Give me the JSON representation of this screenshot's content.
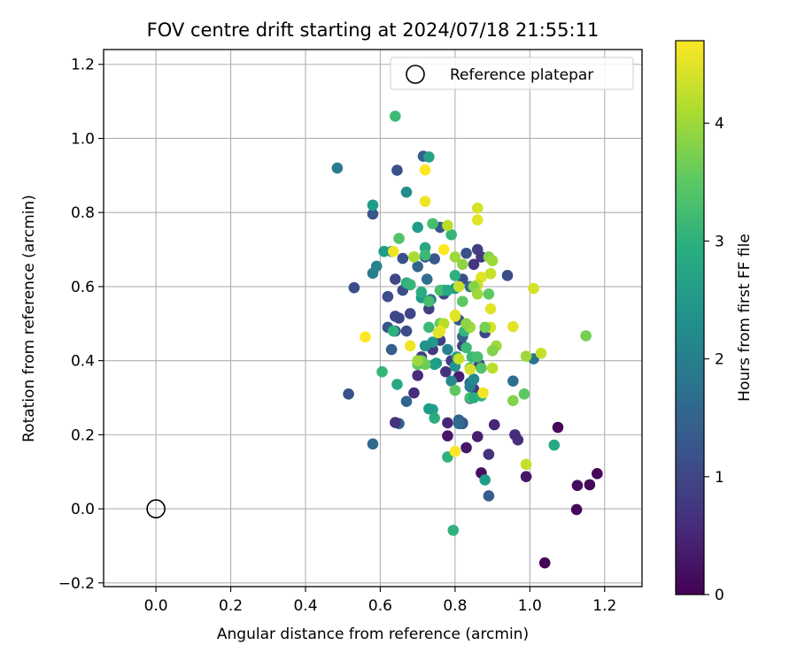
{
  "chart_data": {
    "type": "scatter",
    "title": "FOV centre drift starting at 2024/07/18 21:55:11",
    "xlabel": "Angular distance from reference (arcmin)",
    "ylabel": "Rotation from reference (arcmin)",
    "xlim": [
      -0.14,
      1.3
    ],
    "ylim": [
      -0.21,
      1.24
    ],
    "xticks": [
      0.0,
      0.2,
      0.4,
      0.6,
      0.8,
      1.0,
      1.2
    ],
    "xtick_labels": [
      "0.0",
      "0.2",
      "0.4",
      "0.6",
      "0.8",
      "1.0",
      "1.2"
    ],
    "yticks": [
      -0.2,
      0.0,
      0.2,
      0.4,
      0.6,
      0.8,
      1.0,
      1.2
    ],
    "ytick_labels": [
      "−0.2",
      "0.0",
      "0.2",
      "0.4",
      "0.6",
      "0.8",
      "1.0",
      "1.2"
    ],
    "grid": true,
    "legend": {
      "placement": "top-right",
      "entries": [
        "Reference platepar"
      ]
    },
    "reference_point": {
      "x": 0.0,
      "y": 0.0
    },
    "colorbar": {
      "label": "Hours from first FF file",
      "colormap": "viridis",
      "range": [
        0,
        4.7
      ],
      "ticks": [
        0,
        1,
        2,
        3,
        4
      ],
      "tick_labels": [
        "0",
        "1",
        "2",
        "3",
        "4"
      ]
    },
    "points": [
      [
        1.04,
        -0.146,
        0.05
      ],
      [
        1.125,
        -0.002,
        0.1
      ],
      [
        1.127,
        0.063,
        0.15
      ],
      [
        1.16,
        0.065,
        0.1
      ],
      [
        1.18,
        0.095,
        0.08
      ],
      [
        1.075,
        0.22,
        0.1
      ],
      [
        0.87,
        0.097,
        0.2
      ],
      [
        0.99,
        0.087,
        0.3
      ],
      [
        0.83,
        0.165,
        0.3
      ],
      [
        0.86,
        0.195,
        0.4
      ],
      [
        0.78,
        0.197,
        0.3
      ],
      [
        0.82,
        0.232,
        0.4
      ],
      [
        0.78,
        0.232,
        0.5
      ],
      [
        0.96,
        0.2,
        0.6
      ],
      [
        0.968,
        0.186,
        0.6
      ],
      [
        0.89,
        0.147,
        0.7
      ],
      [
        0.905,
        0.227,
        0.5
      ],
      [
        0.84,
        0.298,
        0.6
      ],
      [
        0.87,
        0.307,
        0.5
      ],
      [
        0.85,
        0.323,
        0.7
      ],
      [
        0.81,
        0.357,
        0.4
      ],
      [
        0.79,
        0.4,
        0.8
      ],
      [
        0.775,
        0.37,
        0.7
      ],
      [
        0.865,
        0.39,
        0.8
      ],
      [
        0.82,
        0.44,
        0.9
      ],
      [
        0.7,
        0.36,
        0.6
      ],
      [
        0.69,
        0.313,
        0.6
      ],
      [
        0.71,
        0.41,
        0.9
      ],
      [
        0.74,
        0.43,
        0.8
      ],
      [
        0.76,
        0.455,
        0.9
      ],
      [
        0.73,
        0.54,
        0.9
      ],
      [
        0.77,
        0.58,
        1.0
      ],
      [
        0.67,
        0.48,
        1.1
      ],
      [
        0.64,
        0.48,
        1.2
      ],
      [
        0.62,
        0.49,
        1.3
      ],
      [
        0.63,
        0.43,
        1.4
      ],
      [
        0.65,
        0.23,
        1.5
      ],
      [
        0.64,
        0.233,
        0.7
      ],
      [
        0.67,
        0.29,
        1.5
      ],
      [
        0.58,
        0.175,
        1.6
      ],
      [
        0.515,
        0.31,
        1.2
      ],
      [
        0.53,
        0.597,
        1.1
      ],
      [
        0.62,
        0.573,
        1.1
      ],
      [
        0.64,
        0.52,
        1.0
      ],
      [
        0.65,
        0.515,
        1.0
      ],
      [
        0.68,
        0.527,
        1.0
      ],
      [
        0.64,
        0.62,
        1.0
      ],
      [
        0.66,
        0.59,
        1.1
      ],
      [
        0.68,
        0.605,
        1.2
      ],
      [
        0.66,
        0.676,
        1.2
      ],
      [
        0.72,
        0.68,
        1.2
      ],
      [
        0.745,
        0.675,
        1.3
      ],
      [
        0.76,
        0.76,
        1.3
      ],
      [
        0.7,
        0.654,
        1.5
      ],
      [
        0.725,
        0.62,
        1.7
      ],
      [
        0.735,
        0.565,
        1.9
      ],
      [
        0.58,
        0.636,
        2.0
      ],
      [
        0.59,
        0.655,
        2.1
      ],
      [
        0.58,
        0.796,
        1.3
      ],
      [
        0.645,
        0.914,
        1.2
      ],
      [
        0.715,
        0.952,
        1.4
      ],
      [
        0.485,
        0.92,
        2.0
      ],
      [
        0.67,
        0.855,
        2.3
      ],
      [
        0.58,
        0.82,
        2.6
      ],
      [
        0.61,
        0.695,
        2.6
      ],
      [
        0.63,
        0.695,
        2.5
      ],
      [
        0.7,
        0.76,
        2.6
      ],
      [
        0.72,
        0.705,
        2.8
      ],
      [
        0.73,
        0.95,
        2.7
      ],
      [
        0.71,
        0.57,
        2.6
      ],
      [
        0.75,
        0.393,
        2.5
      ],
      [
        0.74,
        0.45,
        2.5
      ],
      [
        0.745,
        0.39,
        2.6
      ],
      [
        0.72,
        0.44,
        2.4
      ],
      [
        0.76,
        0.5,
        2.3
      ],
      [
        0.78,
        0.43,
        2.1
      ],
      [
        0.79,
        0.345,
        2.2
      ],
      [
        0.8,
        0.385,
        2.4
      ],
      [
        0.805,
        0.41,
        2.6
      ],
      [
        0.81,
        0.24,
        1.5
      ],
      [
        0.82,
        0.232,
        1.6
      ],
      [
        0.84,
        0.34,
        1.7
      ],
      [
        0.84,
        0.33,
        2.0
      ],
      [
        0.85,
        0.35,
        2.2
      ],
      [
        0.89,
        0.035,
        1.4
      ],
      [
        0.88,
        0.078,
        2.6
      ],
      [
        0.94,
        0.63,
        1.1
      ],
      [
        0.82,
        0.62,
        1.1
      ],
      [
        0.83,
        0.69,
        1.2
      ],
      [
        0.86,
        0.7,
        0.9
      ],
      [
        0.87,
        0.68,
        0.8
      ],
      [
        0.85,
        0.66,
        0.7
      ],
      [
        0.88,
        0.475,
        1.0
      ],
      [
        0.81,
        0.51,
        1.3
      ],
      [
        0.82,
        0.465,
        1.5
      ],
      [
        0.84,
        0.6,
        1.6
      ],
      [
        0.8,
        0.595,
        2.5
      ],
      [
        0.77,
        0.59,
        2.8
      ],
      [
        0.8,
        0.63,
        3.0
      ],
      [
        0.79,
        0.74,
        3.1
      ],
      [
        0.825,
        0.48,
        3.1
      ],
      [
        0.83,
        0.435,
        3.2
      ],
      [
        0.76,
        0.59,
        3.3
      ],
      [
        0.74,
        0.77,
        3.3
      ],
      [
        0.78,
        0.59,
        2.8
      ],
      [
        0.845,
        0.41,
        3.2
      ],
      [
        0.86,
        0.41,
        3.3
      ],
      [
        0.87,
        0.38,
        3.4
      ],
      [
        0.84,
        0.38,
        3.0
      ],
      [
        0.82,
        0.23,
        1.3
      ],
      [
        0.81,
        0.23,
        1.6
      ],
      [
        0.74,
        0.268,
        2.7
      ],
      [
        0.745,
        0.245,
        2.9
      ],
      [
        0.765,
        0.5,
        3.4
      ],
      [
        0.76,
        0.5,
        3.6
      ],
      [
        0.73,
        0.49,
        3.2
      ],
      [
        0.72,
        0.685,
        3.2
      ],
      [
        0.73,
        0.56,
        3.3
      ],
      [
        0.71,
        0.585,
        2.9
      ],
      [
        0.82,
        0.56,
        3.5
      ],
      [
        0.84,
        0.3,
        3.3
      ],
      [
        0.85,
        0.3,
        2.9
      ],
      [
        0.87,
        0.305,
        3.0
      ],
      [
        0.8,
        0.32,
        3.5
      ],
      [
        0.73,
        0.27,
        2.6
      ],
      [
        0.72,
        0.39,
        3.6
      ],
      [
        0.7,
        0.39,
        3.5
      ],
      [
        0.71,
        0.4,
        3.7
      ],
      [
        0.69,
        0.68,
        3.7
      ],
      [
        0.65,
        0.73,
        3.4
      ],
      [
        0.605,
        0.37,
        3.1
      ],
      [
        0.645,
        0.336,
        2.8
      ],
      [
        0.635,
        0.48,
        3.0
      ],
      [
        0.67,
        0.61,
        3.0
      ],
      [
        0.64,
        1.06,
        3.2
      ],
      [
        0.68,
        0.605,
        3.1
      ],
      [
        0.78,
        0.14,
        3.0
      ],
      [
        0.795,
        -0.058,
        3.0
      ],
      [
        1.065,
        0.172,
        2.8
      ],
      [
        1.01,
        0.405,
        1.8
      ],
      [
        0.955,
        0.345,
        1.7
      ],
      [
        0.955,
        0.292,
        3.8
      ],
      [
        0.985,
        0.31,
        3.5
      ],
      [
        0.99,
        0.412,
        4.0
      ],
      [
        1.03,
        0.42,
        4.3
      ],
      [
        1.15,
        0.467,
        3.7
      ],
      [
        1.01,
        0.595,
        4.4
      ],
      [
        0.955,
        0.492,
        4.5
      ],
      [
        0.91,
        0.44,
        4.0
      ],
      [
        0.9,
        0.427,
        3.8
      ],
      [
        0.9,
        0.38,
        4.2
      ],
      [
        0.895,
        0.49,
        4.4
      ],
      [
        0.88,
        0.49,
        3.7
      ],
      [
        0.895,
        0.54,
        4.5
      ],
      [
        0.89,
        0.58,
        3.5
      ],
      [
        0.895,
        0.635,
        4.3
      ],
      [
        0.89,
        0.68,
        3.8
      ],
      [
        0.9,
        0.67,
        4.0
      ],
      [
        0.87,
        0.625,
        4.5
      ],
      [
        0.86,
        0.605,
        4.3
      ],
      [
        0.85,
        0.6,
        3.8
      ],
      [
        0.86,
        0.58,
        4.0
      ],
      [
        0.86,
        0.78,
        4.5
      ],
      [
        0.86,
        0.812,
        4.4
      ],
      [
        0.78,
        0.765,
        4.2
      ],
      [
        0.8,
        0.68,
        4.0
      ],
      [
        0.82,
        0.66,
        3.9
      ],
      [
        0.81,
        0.6,
        4.3
      ],
      [
        0.8,
        0.52,
        4.7
      ],
      [
        0.8,
        0.523,
        4.5
      ],
      [
        0.84,
        0.49,
        4.0
      ],
      [
        0.83,
        0.5,
        3.9
      ],
      [
        0.81,
        0.405,
        4.3
      ],
      [
        0.77,
        0.5,
        4.2
      ],
      [
        0.76,
        0.48,
        4.6
      ],
      [
        0.755,
        0.475,
        4.5
      ],
      [
        0.77,
        0.7,
        4.7
      ],
      [
        0.72,
        0.83,
        4.6
      ],
      [
        0.72,
        0.915,
        4.7
      ],
      [
        0.69,
        0.68,
        4.1
      ],
      [
        0.635,
        0.695,
        4.6
      ],
      [
        0.56,
        0.464,
        4.7
      ],
      [
        0.68,
        0.44,
        4.6
      ],
      [
        0.7,
        0.4,
        4.0
      ],
      [
        0.8,
        0.155,
        4.7
      ],
      [
        0.875,
        0.313,
        4.6
      ],
      [
        0.99,
        0.12,
        4.3
      ],
      [
        0.84,
        0.377,
        4.4
      ]
    ]
  }
}
